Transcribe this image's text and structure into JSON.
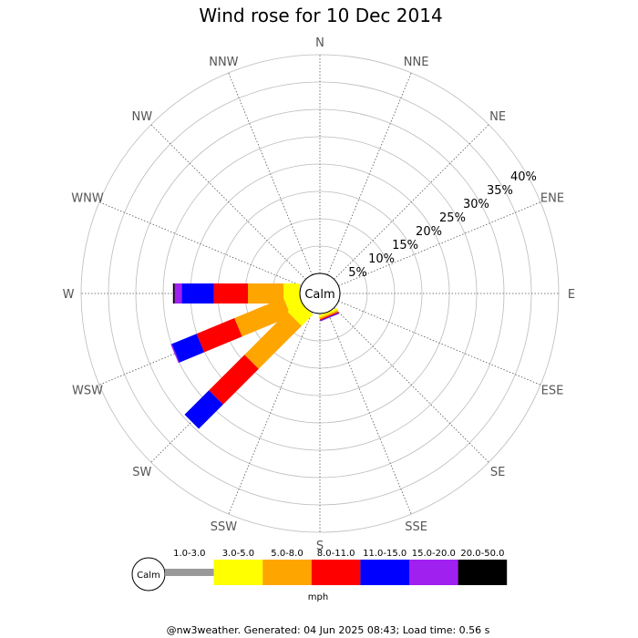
{
  "chart_data": {
    "type": "wind-rose",
    "title": "Wind rose for 10 Dec 2014",
    "directions": [
      "N",
      "NNE",
      "NE",
      "ENE",
      "E",
      "ESE",
      "SE",
      "SSE",
      "S",
      "SSW",
      "SW",
      "WSW",
      "W",
      "WNW",
      "NW",
      "NNW"
    ],
    "ring_labels": [
      "5%",
      "10%",
      "15%",
      "20%",
      "25%",
      "30%",
      "35%",
      "40%"
    ],
    "ring_values": [
      5,
      10,
      15,
      20,
      25,
      30,
      35,
      40
    ],
    "rmax": 40,
    "calm_label": "Calm",
    "speed_bins": [
      {
        "label": "1.0-3.0",
        "color": "#999999"
      },
      {
        "label": "3.0-5.0",
        "color": "#ffff00"
      },
      {
        "label": "5.0-8.0",
        "color": "#ffa500"
      },
      {
        "label": "8.0-11.0",
        "color": "#ff0000"
      },
      {
        "label": "11.0-15.0",
        "color": "#0000ff"
      },
      {
        "label": "15.0-20.0",
        "color": "#a020f0"
      },
      {
        "label": "20.0-50.0",
        "color": "#000000"
      }
    ],
    "unit_label": "mph",
    "series": [
      {
        "direction": "SSE",
        "cumulative": [
          0,
          0.4,
          0.7,
          0.9,
          1.0,
          1.1,
          1.1
        ]
      },
      {
        "direction": "W",
        "cumulative": [
          0,
          3.0,
          9.5,
          15.7,
          21.6,
          22.9,
          23.2
        ]
      },
      {
        "direction": "WSW",
        "cumulative": [
          0,
          2.8,
          12.5,
          20.0,
          24.9,
          25.1,
          25.1
        ]
      },
      {
        "direction": "SW",
        "cumulative": [
          0,
          2.9,
          14.0,
          23.2,
          29.5,
          29.5,
          29.5
        ]
      }
    ]
  },
  "footer": "@nw3weather. Generated: 04 Jun 2025 08:43; Load time: 0.56 s"
}
